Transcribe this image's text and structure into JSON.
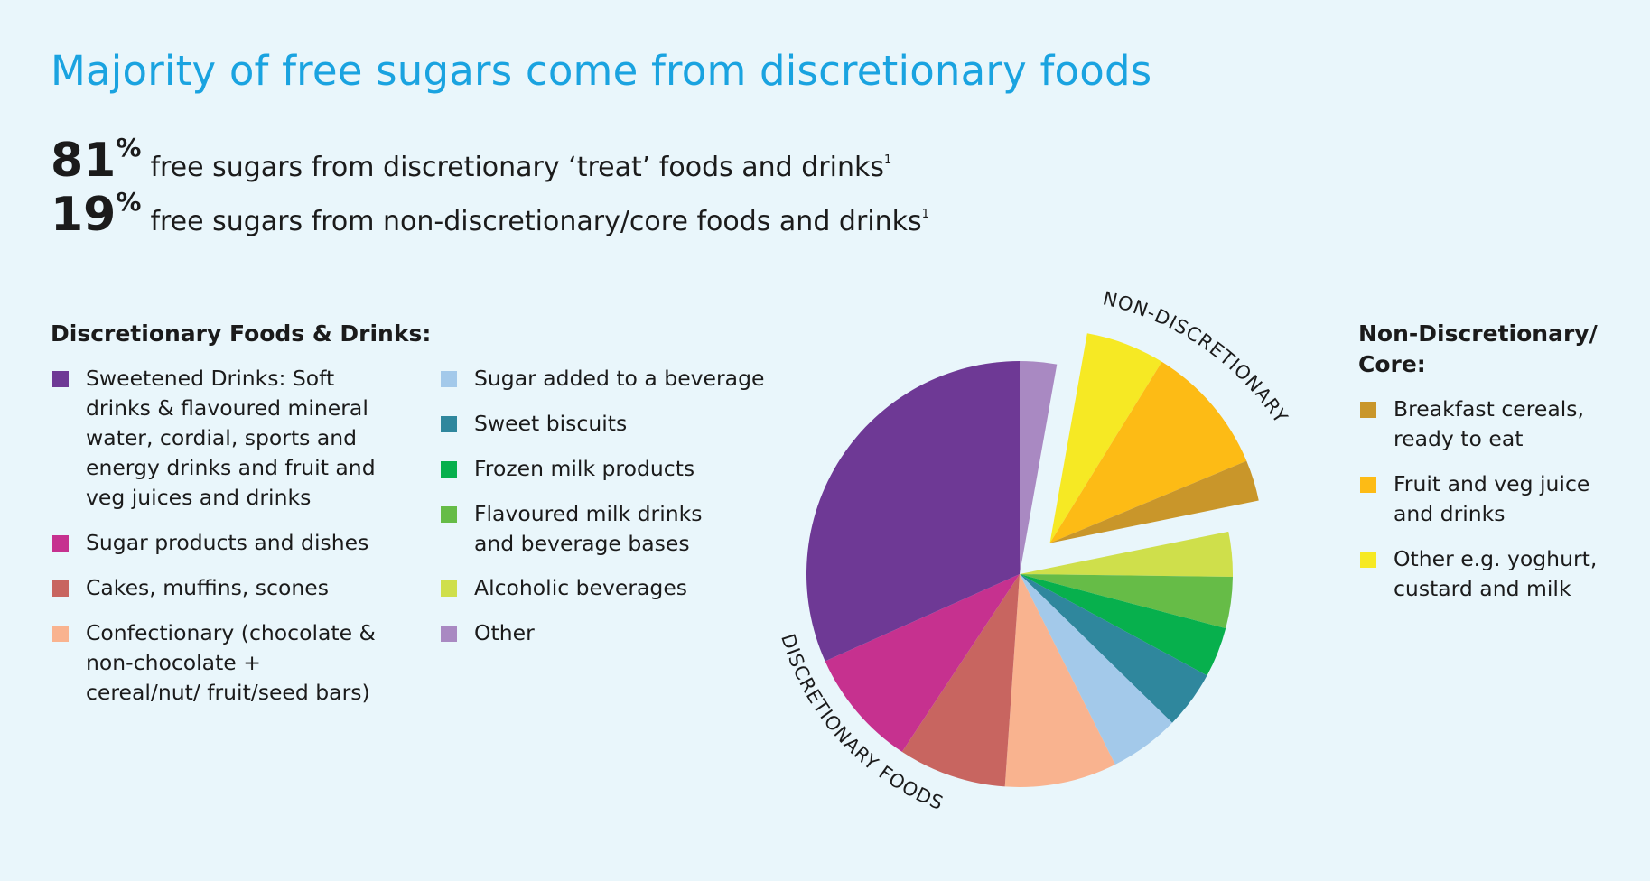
{
  "header": {
    "title": "Majority of free sugars come from discretionary foods"
  },
  "stats": [
    {
      "value": "81",
      "unit": "%",
      "text": "free sugars from discretionary ‘treat’ foods and drinks",
      "footnote": "1"
    },
    {
      "value": "19",
      "unit": "%",
      "text": "free sugars from non-discretionary/core foods and drinks",
      "footnote": "1"
    }
  ],
  "legend_discretionary": {
    "heading": "Discretionary Foods & Drinks:",
    "items": [
      {
        "label": "Sweetened Drinks: Soft drinks & flavoured mineral water, cordial, sports and energy drinks and fruit and veg juices and drinks",
        "color": "#6e3995"
      },
      {
        "label": "Sugar products and dishes",
        "color": "#c6318f"
      },
      {
        "label": "Cakes, muffins, scones",
        "color": "#c86560"
      },
      {
        "label": "Confectionary (chocolate & non-chocolate + cereal/nut/ fruit/seed bars)",
        "color": "#f9b38f"
      },
      {
        "label": "Sugar added to a beverage",
        "color": "#a3c9ea"
      },
      {
        "label": "Sweet biscuits",
        "color": "#2f879d"
      },
      {
        "label": "Frozen milk products",
        "color": "#07b04d"
      },
      {
        "label": "Flavoured milk drinks and beverage bases",
        "color": "#66bc47"
      },
      {
        "label": "Alcoholic beverages",
        "color": "#cfdf4b"
      },
      {
        "label": "Other",
        "color": "#a989c2"
      }
    ]
  },
  "legend_core": {
    "heading": "Non-Discretionary/ Core:",
    "items": [
      {
        "label": "Breakfast cereals, ready to eat",
        "color": "#c9962a"
      },
      {
        "label": "Fruit and veg juice and drinks",
        "color": "#fdbb15"
      },
      {
        "label": "Other e.g. yoghurt, custard and milk",
        "color": "#f6e924"
      }
    ]
  },
  "chart_data": {
    "type": "pie",
    "title": "",
    "start_angle_deg": 0,
    "direction": "clockwise",
    "exploded_group": "NON-DISCRETIONARY",
    "groups": [
      {
        "label": "DISCRETIONARY FOODS",
        "total_percent": 81
      },
      {
        "label": "NON-DISCRETIONARY",
        "total_percent": 19
      }
    ],
    "slices": [
      {
        "label": "Other",
        "group": "DISCRETIONARY FOODS",
        "value": 2.8,
        "color": "#a989c2"
      },
      {
        "label": "Other e.g. yoghurt, custard and milk",
        "group": "NON-DISCRETIONARY",
        "value": 6.0,
        "color": "#f6e924"
      },
      {
        "label": "Fruit and veg juice and drinks",
        "group": "NON-DISCRETIONARY",
        "value": 9.9,
        "color": "#fdbb15"
      },
      {
        "label": "Breakfast cereals, ready to eat",
        "group": "NON-DISCRETIONARY",
        "value": 3.1,
        "color": "#c9962a"
      },
      {
        "label": "Alcoholic beverages",
        "group": "DISCRETIONARY FOODS",
        "value": 3.4,
        "color": "#cfdf4b"
      },
      {
        "label": "Flavoured milk drinks and beverage bases",
        "group": "DISCRETIONARY FOODS",
        "value": 3.9,
        "color": "#66bc47"
      },
      {
        "label": "Frozen milk products",
        "group": "DISCRETIONARY FOODS",
        "value": 3.8,
        "color": "#07b04d"
      },
      {
        "label": "Sweet biscuits",
        "group": "DISCRETIONARY FOODS",
        "value": 4.4,
        "color": "#2f879d"
      },
      {
        "label": "Sugar added to a beverage",
        "group": "DISCRETIONARY FOODS",
        "value": 5.3,
        "color": "#a3c9ea"
      },
      {
        "label": "Confectionary (chocolate & non-chocolate + cereal/nut/ fruit/seed bars)",
        "group": "DISCRETIONARY FOODS",
        "value": 8.5,
        "color": "#f9b38f"
      },
      {
        "label": "Cakes, muffins, scones",
        "group": "DISCRETIONARY FOODS",
        "value": 8.2,
        "color": "#c86560"
      },
      {
        "label": "Sugar products and dishes",
        "group": "DISCRETIONARY FOODS",
        "value": 9.0,
        "color": "#c6318f"
      },
      {
        "label": "Sweetened Drinks: Soft drinks & flavoured mineral water, cordial, sports and energy drinks and fruit and veg juices and drinks",
        "group": "DISCRETIONARY FOODS",
        "value": 31.7,
        "color": "#6e3995"
      }
    ]
  }
}
